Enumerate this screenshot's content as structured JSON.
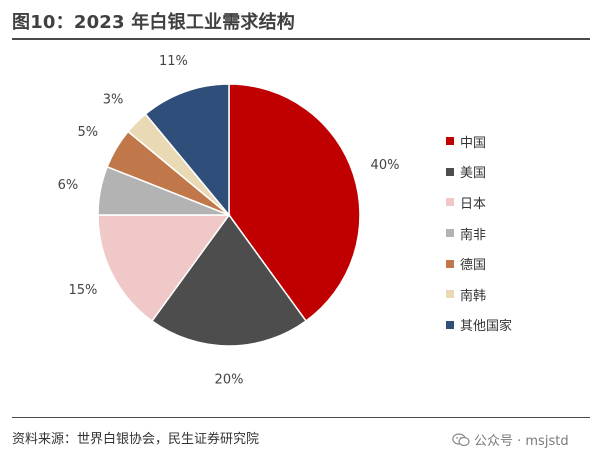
{
  "title": "图10：2023 年白银工业需求结构",
  "source": "资料来源：世界白银协会，民生证券研究院",
  "watermark": {
    "text": "公众号 · msjstd",
    "icon": "wechat-icon"
  },
  "chart_data": {
    "type": "pie",
    "title": "图10：2023 年白银工业需求结构",
    "categories": [
      "中国",
      "美国",
      "日本",
      "南非",
      "德国",
      "南韩",
      "其他国家"
    ],
    "values": [
      40,
      20,
      15,
      6,
      5,
      3,
      11
    ],
    "labels": [
      "40%",
      "20%",
      "15%",
      "6%",
      "5%",
      "3%",
      "11%"
    ],
    "colors": [
      "#c00000",
      "#4d4d4d",
      "#f0c8c8",
      "#b3b3b3",
      "#c0784a",
      "#ead9b5",
      "#2f4e7a"
    ],
    "start_angle": "12 o'clock",
    "direction": "clockwise",
    "legend_position": "right"
  }
}
